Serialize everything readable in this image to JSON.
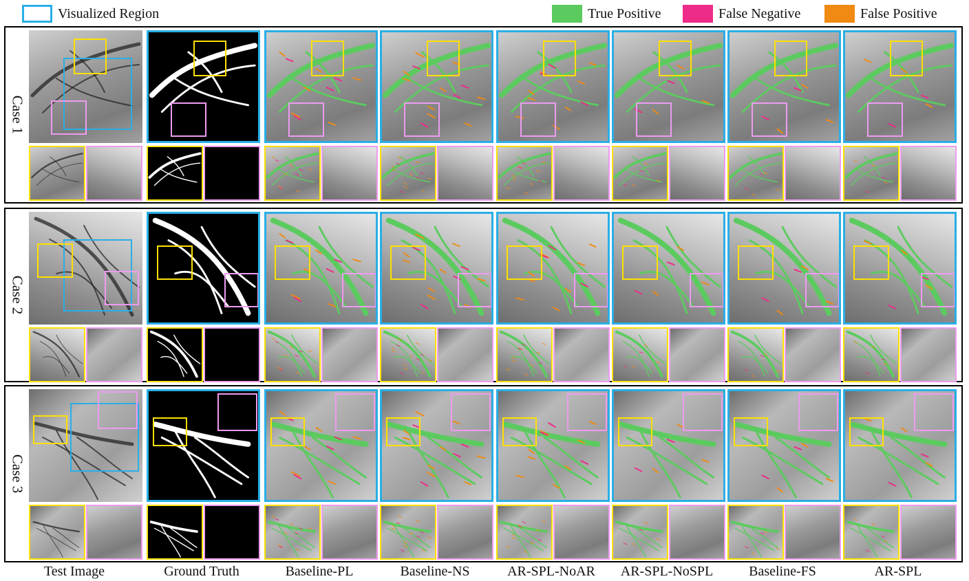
{
  "legend": {
    "visualized_region": "Visualized Region",
    "true_positive": "True Positive",
    "false_negative": "False Negative",
    "false_positive": "False Positive"
  },
  "colors": {
    "true_positive": "#5ccb5f",
    "false_negative": "#ee2b88",
    "false_positive": "#f08a12",
    "visualized_region": "#29aee6",
    "zoom_a": "#ffe000",
    "zoom_b": "#ee9bf0"
  },
  "cases": [
    {
      "label": "Case 1"
    },
    {
      "label": "Case 2"
    },
    {
      "label": "Case 3"
    }
  ],
  "columns": [
    "Test Image",
    "Ground Truth",
    "Baseline-PL",
    "Baseline-NS",
    "AR-SPL-NoAR",
    "AR-SPL-NoSPL",
    "Baseline-FS",
    "AR-SPL"
  ]
}
